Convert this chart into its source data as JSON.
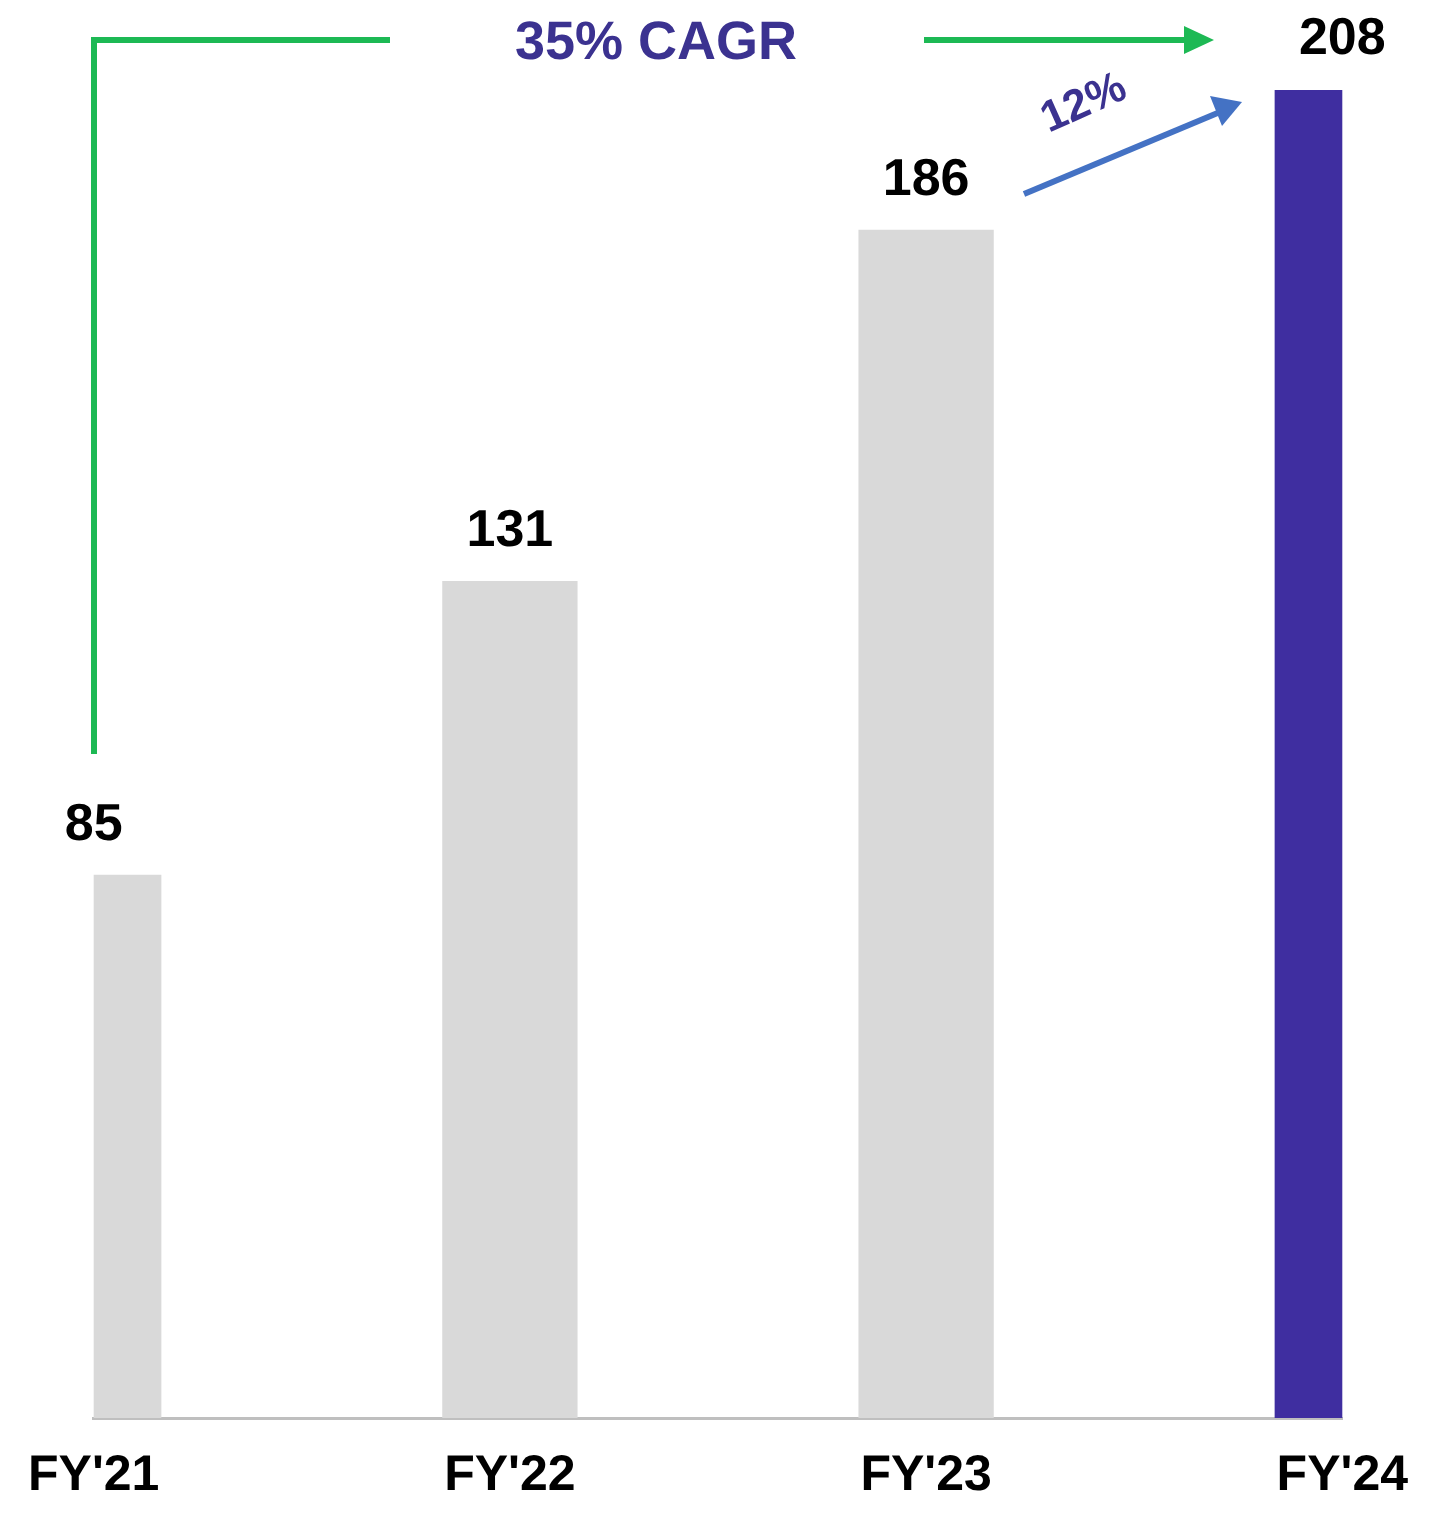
{
  "chart_data": {
    "type": "bar",
    "categories": [
      "FY'21",
      "FY'22",
      "FY'23",
      "FY'24"
    ],
    "values": [
      85,
      131,
      186,
      208
    ],
    "colors": [
      "#d9d9d9",
      "#d9d9d9",
      "#d9d9d9",
      "#3f2ea0"
    ],
    "data_labels": true,
    "grid": false,
    "annotations": [
      "35% CAGR",
      "12%"
    ]
  }
}
